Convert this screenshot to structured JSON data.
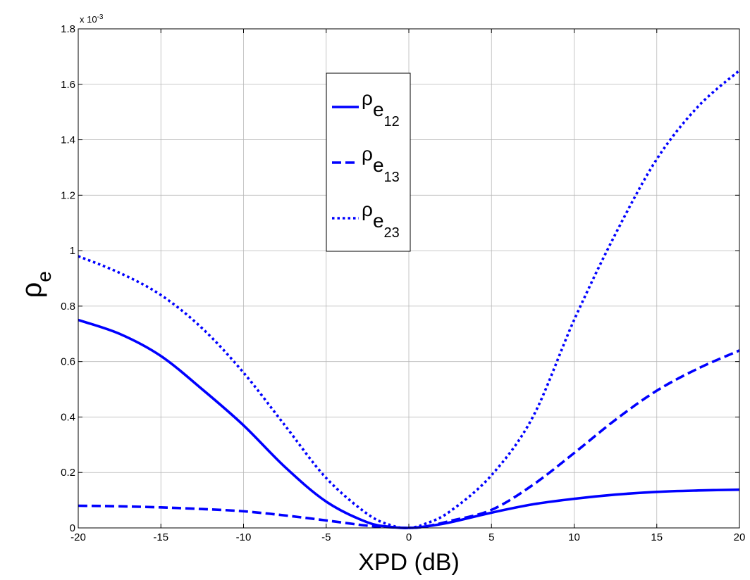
{
  "chart_data": {
    "type": "line",
    "xlabel": "XPD (dB)",
    "ylabel": {
      "main": "ρ",
      "sub": "e"
    },
    "y_multiplier_label": {
      "base": "x 10",
      "exponent": "-3"
    },
    "xlim": [
      -20,
      20
    ],
    "ylim": [
      0,
      0.0018
    ],
    "x_ticks": [
      -20,
      -15,
      -10,
      -5,
      0,
      5,
      10,
      15,
      20
    ],
    "x_tick_labels": [
      "-20",
      "-15",
      "-10",
      "-5",
      "0",
      "5",
      "10",
      "15",
      "20"
    ],
    "y_ticks": [
      0,
      0.0002,
      0.0004,
      0.0006,
      0.0008,
      0.001,
      0.0012,
      0.0014,
      0.0016,
      0.0018
    ],
    "y_tick_labels": [
      "0",
      "0.2",
      "0.4",
      "0.6",
      "0.8",
      "1",
      "1.2",
      "1.4",
      "1.6",
      "1.8"
    ],
    "grid": true,
    "legend_position": "top-center",
    "color": "#0000ff",
    "series": [
      {
        "name": "ρ_e12",
        "legend": {
          "main": "ρ",
          "sub": "e",
          "subsub": "12"
        },
        "style": "solid",
        "x": [
          -20,
          -17.5,
          -15,
          -12.5,
          -10,
          -7.5,
          -5,
          -2.5,
          -1,
          0,
          1,
          2.5,
          5,
          7.5,
          10,
          12.5,
          15,
          17.5,
          20
        ],
        "y": [
          0.00075,
          0.0007,
          0.00062,
          0.0005,
          0.00037,
          0.00022,
          9.5e-05,
          2e-05,
          3e-06,
          0,
          5e-06,
          2e-05,
          5.5e-05,
          8.5e-05,
          0.000105,
          0.00012,
          0.00013,
          0.000135,
          0.000138
        ]
      },
      {
        "name": "ρ_e13",
        "legend": {
          "main": "ρ",
          "sub": "e",
          "subsub": "13"
        },
        "style": "dashed",
        "x": [
          -20,
          -17.5,
          -15,
          -12.5,
          -10,
          -7.5,
          -5,
          -2.5,
          -1,
          0,
          1,
          2.5,
          5,
          7.5,
          10,
          12.5,
          15,
          17.5,
          20
        ],
        "y": [
          8e-05,
          7.8e-05,
          7.4e-05,
          6.8e-05,
          6e-05,
          4.5e-05,
          2.7e-05,
          8e-06,
          2e-06,
          0,
          5e-06,
          2.5e-05,
          6.5e-05,
          0.000155,
          0.00027,
          0.00039,
          0.000495,
          0.000575,
          0.00064
        ]
      },
      {
        "name": "ρ_e23",
        "legend": {
          "main": "ρ",
          "sub": "e",
          "subsub": "23"
        },
        "style": "dotted",
        "x": [
          -20,
          -17.5,
          -15,
          -12.5,
          -10,
          -7.5,
          -5,
          -2.5,
          -1,
          0,
          1,
          2.5,
          5,
          7.5,
          10,
          12.5,
          15,
          17.5,
          20
        ],
        "y": [
          0.00098,
          0.00092,
          0.00084,
          0.00072,
          0.00056,
          0.00037,
          0.00018,
          5e-05,
          8e-06,
          0,
          1.5e-05,
          6e-05,
          0.00019,
          0.0004,
          0.00075,
          0.00106,
          0.00133,
          0.00152,
          0.00165
        ]
      }
    ]
  }
}
